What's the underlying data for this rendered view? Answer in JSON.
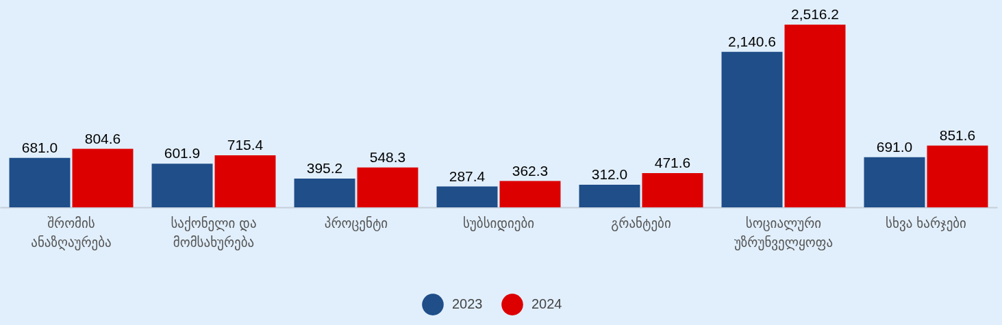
{
  "chart_data": {
    "type": "bar",
    "categories": [
      "შრომის ანაზღაურება",
      "საქონელი და მომსახურება",
      "პროცენტი",
      "სუბსიდიები",
      "გრანტები",
      "სოციალური უზრუნველყოფა",
      "სხვა ხარჯები"
    ],
    "series": [
      {
        "name": "2023",
        "color": "#1f4e89",
        "values": [
          681.0,
          601.9,
          395.2,
          287.4,
          312.0,
          2140.6,
          691.0
        ],
        "value_labels": [
          "681.0",
          "601.9",
          "395.2",
          "287.4",
          "312.0",
          "2,140.6",
          "691.0"
        ]
      },
      {
        "name": "2024",
        "color": "#dd0000",
        "values": [
          804.6,
          715.4,
          548.3,
          362.3,
          471.6,
          2516.2,
          851.6
        ],
        "value_labels": [
          "804.6",
          "715.4",
          "548.3",
          "362.3",
          "471.6",
          "2,516.2",
          "851.6"
        ]
      }
    ],
    "legend": "bottom"
  }
}
